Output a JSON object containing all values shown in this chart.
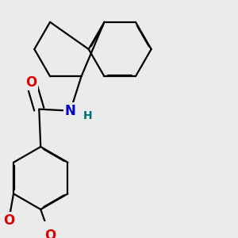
{
  "background_color": "#ebebeb",
  "bond_color": "#000000",
  "bond_width": 1.6,
  "atom_colors": {
    "O": "#dd0000",
    "N": "#0000cc",
    "H": "#007070",
    "C": "#000000"
  },
  "font_size_N": 12,
  "font_size_O": 12,
  "font_size_H": 10
}
